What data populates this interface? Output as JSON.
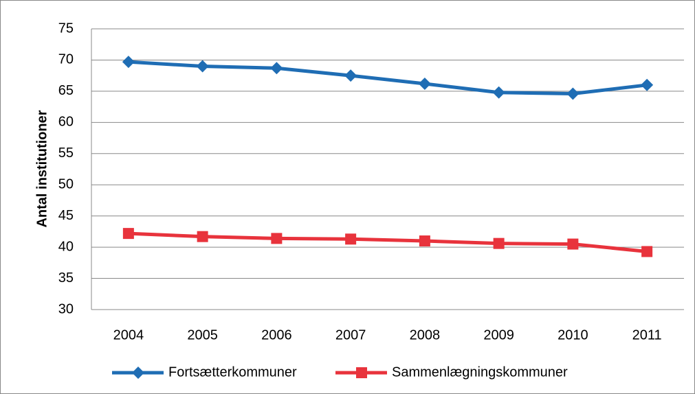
{
  "chart_data": {
    "type": "line",
    "y_label": "Antal institutioner",
    "categories": [
      "2004",
      "2005",
      "2006",
      "2007",
      "2008",
      "2009",
      "2010",
      "2011"
    ],
    "series": [
      {
        "name": "Fortsætterkommuner",
        "color": "#1f6db4",
        "marker": "diamond",
        "values": [
          69.7,
          69.0,
          68.7,
          67.5,
          66.2,
          64.8,
          64.6,
          66.0
        ]
      },
      {
        "name": "Sammenlægningskommuner",
        "color": "#e8333c",
        "marker": "square",
        "values": [
          42.2,
          41.7,
          41.4,
          41.3,
          41.0,
          40.6,
          40.5,
          39.3
        ]
      }
    ],
    "ylim": [
      30,
      75
    ],
    "yticks": [
      30,
      35,
      40,
      45,
      50,
      55,
      60,
      65,
      70,
      75
    ],
    "grid": true,
    "legend": "bottom"
  }
}
